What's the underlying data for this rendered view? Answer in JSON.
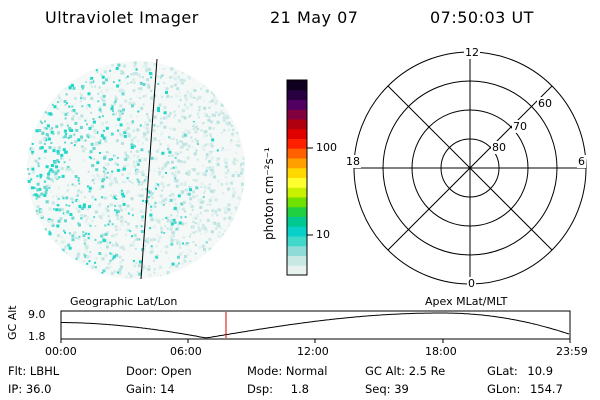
{
  "header": {
    "instrument": "Ultraviolet Imager",
    "date": "21 May 07",
    "time": "07:50:03 UT"
  },
  "colorbar": {
    "unit_label": "photon cm⁻²s⁻¹",
    "tick_labels": [
      "100",
      "10"
    ],
    "scale": "log",
    "colors": [
      "#e8f2ee",
      "#c8e8e4",
      "#8edbd8",
      "#40d8c8",
      "#08d0c8",
      "#00c890",
      "#20d040",
      "#70e000",
      "#c8f000",
      "#ffff30",
      "#ffd800",
      "#ffa000",
      "#ff6000",
      "#ff2000",
      "#e00000",
      "#b00010",
      "#800040",
      "#500060",
      "#280040",
      "#100020"
    ]
  },
  "image_panel": {
    "projection_label": "Geographic Lat/Lon",
    "speckle_color": "#20d8c8"
  },
  "polar_panel": {
    "projection_label": "Apex MLat/MLT",
    "mlt_labels": {
      "top": "12",
      "bottom": "0",
      "left": "18",
      "right": "6"
    },
    "mlat_labels": [
      "60",
      "70",
      "80"
    ]
  },
  "timeline": {
    "axis_title": "GC Alt",
    "y_ticks": [
      "9.0",
      "1.8"
    ],
    "x_ticks": [
      "00:00",
      "06:00",
      "12:00",
      "18:00",
      "23:59"
    ],
    "marker_color": "#e00000"
  },
  "info": {
    "filter": {
      "label": "Flt:",
      "value": "LBHL"
    },
    "ip": {
      "label": "IP:",
      "value": "36.0"
    },
    "door": {
      "label": "Door:",
      "value": "Open"
    },
    "gain": {
      "label": "Gain:",
      "value": "14"
    },
    "mode": {
      "label": "Mode:",
      "value": "Normal"
    },
    "dsp": {
      "label": "Dsp:",
      "value": "1.8"
    },
    "gc_alt": {
      "label": "GC Alt:",
      "value": "2.5 Re"
    },
    "seq": {
      "label": "Seq:",
      "value": "39"
    },
    "glat": {
      "label": "GLat:",
      "value": "10.9"
    },
    "glon": {
      "label": "GLon:",
      "value": "154.7"
    }
  }
}
